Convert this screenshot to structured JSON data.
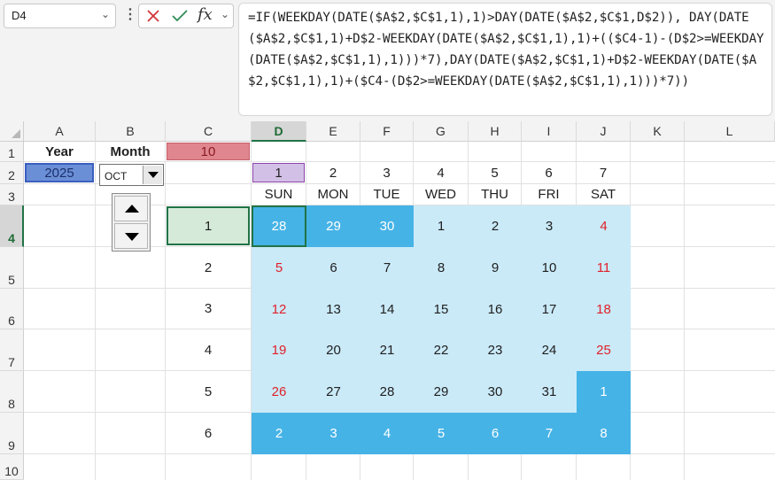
{
  "name_box": {
    "value": "D4"
  },
  "formula_bar": {
    "formula": "=IF(WEEKDAY(DATE($A$2,$C$1,1),1)>DAY(DATE($A$2,$C$1,D$2)), DAY(DATE($A$2,$C$1,1)+D$2-WEEKDAY(DATE($A$2,$C$1,1),1)+(($C4-1)-(D$2>=WEEKDAY(DATE($A$2,$C$1,1),1)))*7),DAY(DATE($A$2,$C$1,1)+D$2-WEEKDAY(DATE($A$2,$C$1,1),1)+($C4-(D$2>=WEEKDAY(DATE($A$2,$C$1,1),1)))*7))",
    "fx_label": "fx"
  },
  "columns": [
    "A",
    "B",
    "C",
    "D",
    "E",
    "F",
    "G",
    "H",
    "I",
    "J",
    "K",
    "L"
  ],
  "rows": [
    "1",
    "2",
    "3",
    "4",
    "5",
    "6",
    "7",
    "8",
    "9",
    "10"
  ],
  "selected_cell": "D4",
  "labels": {
    "year_header": "Year",
    "month_header": "Month"
  },
  "values": {
    "year": "2025",
    "month_number": "10",
    "month_combo": "OCT",
    "weekday_numbers": [
      "1",
      "2",
      "3",
      "4",
      "5",
      "6",
      "7"
    ],
    "day_names": [
      "SUN",
      "MON",
      "TUE",
      "WED",
      "THU",
      "FRI",
      "SAT"
    ],
    "week_numbers": [
      "1",
      "2",
      "3",
      "4",
      "5",
      "6"
    ]
  },
  "calendar": {
    "weeks": [
      [
        "28",
        "29",
        "30",
        "1",
        "2",
        "3",
        "4"
      ],
      [
        "5",
        "6",
        "7",
        "8",
        "9",
        "10",
        "11"
      ],
      [
        "12",
        "13",
        "14",
        "15",
        "16",
        "17",
        "18"
      ],
      [
        "19",
        "20",
        "21",
        "22",
        "23",
        "24",
        "25"
      ],
      [
        "26",
        "27",
        "28",
        "29",
        "30",
        "31",
        "1"
      ],
      [
        "2",
        "3",
        "4",
        "5",
        "6",
        "7",
        "8"
      ]
    ],
    "out_of_month": [
      [
        true,
        true,
        true,
        false,
        false,
        false,
        false
      ],
      [
        false,
        false,
        false,
        false,
        false,
        false,
        false
      ],
      [
        false,
        false,
        false,
        false,
        false,
        false,
        false
      ],
      [
        false,
        false,
        false,
        false,
        false,
        false,
        false
      ],
      [
        false,
        false,
        false,
        false,
        false,
        false,
        true
      ],
      [
        true,
        true,
        true,
        true,
        true,
        true,
        true
      ]
    ]
  },
  "colors": {
    "in_month_fill": "#caeaf8",
    "out_of_month_fill": "#46b3e6",
    "weekend_text": "#e0202a",
    "year_fill": "#6b8fd6",
    "month_fill": "#e0868e",
    "weekday_fill": "#d2c0e6",
    "week_fill": "#d5ead9"
  }
}
